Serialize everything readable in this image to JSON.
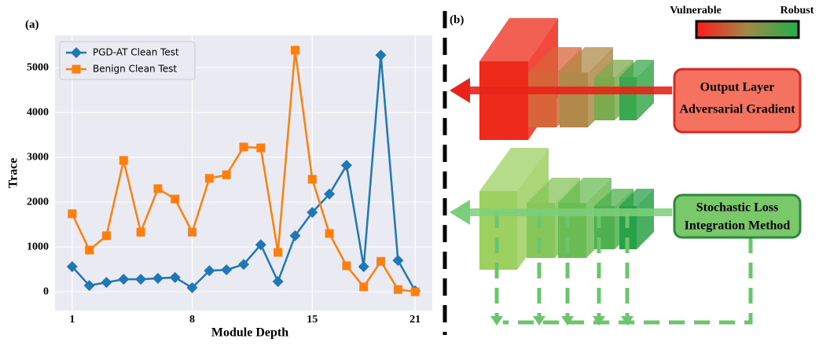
{
  "chart_data": {
    "type": "line",
    "panel_label": "(a)",
    "x_label": "Module Depth",
    "y_label": "Trace",
    "x": [
      1,
      2,
      3,
      4,
      5,
      6,
      7,
      8,
      9,
      10,
      11,
      12,
      13,
      14,
      15,
      16,
      17,
      18,
      19,
      20,
      21
    ],
    "series": [
      {
        "name": "PGD-AT Clean Test",
        "color": "#1f77b4",
        "marker": "diamond",
        "values": [
          560,
          140,
          210,
          280,
          280,
          300,
          320,
          90,
          470,
          490,
          610,
          1050,
          230,
          1250,
          1770,
          2180,
          2820,
          560,
          5280,
          700,
          20
        ]
      },
      {
        "name": "Benign Clean Test",
        "color": "#ff7f0e",
        "marker": "square",
        "values": [
          1740,
          930,
          1250,
          2930,
          1330,
          2300,
          2070,
          1330,
          2530,
          2610,
          3230,
          3210,
          880,
          5390,
          2510,
          1300,
          580,
          110,
          680,
          50,
          0
        ]
      }
    ],
    "xlim": [
      0,
      22
    ],
    "ylim": [
      -420,
      5720
    ],
    "xticks": [
      1,
      8,
      15,
      21
    ],
    "yticks": [
      0,
      1000,
      2000,
      3000,
      4000,
      5000
    ],
    "grid": true,
    "legend": "upper-left"
  },
  "diagram": {
    "label": "(b)",
    "scale": {
      "low": "Vulnerable",
      "high": "Robust"
    },
    "boxes": [
      {
        "lines": [
          "Output Layer",
          "Adversarial Gradient"
        ]
      },
      {
        "lines": [
          "Stochastic Loss",
          "Integration Method"
        ]
      }
    ]
  }
}
